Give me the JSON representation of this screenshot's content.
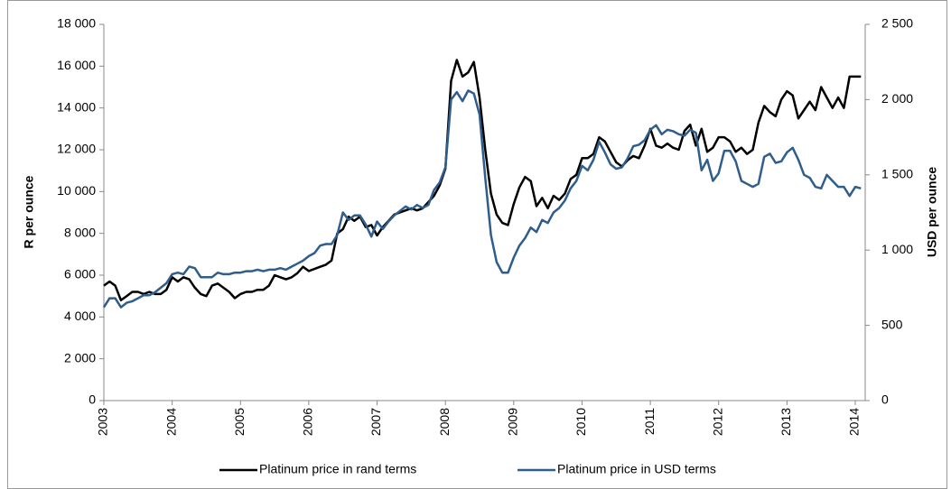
{
  "chart_data": {
    "type": "line",
    "y_label": "R per ounce",
    "y2_label": "USD per ounce",
    "categories": [
      "2003",
      null,
      null,
      null,
      null,
      null,
      null,
      null,
      null,
      null,
      null,
      null,
      "2004",
      null,
      null,
      null,
      null,
      null,
      null,
      null,
      null,
      null,
      null,
      null,
      "2005",
      null,
      null,
      null,
      null,
      null,
      null,
      null,
      null,
      null,
      null,
      null,
      "2006",
      null,
      null,
      null,
      null,
      null,
      null,
      null,
      null,
      null,
      null,
      null,
      "2007",
      null,
      null,
      null,
      null,
      null,
      null,
      null,
      null,
      null,
      null,
      null,
      "2008",
      null,
      null,
      null,
      null,
      null,
      null,
      null,
      null,
      null,
      null,
      null,
      "2009",
      null,
      null,
      null,
      null,
      null,
      null,
      null,
      null,
      null,
      null,
      null,
      "2010",
      null,
      null,
      null,
      null,
      null,
      null,
      null,
      null,
      null,
      null,
      null,
      "2011",
      null,
      null,
      null,
      null,
      null,
      null,
      null,
      null,
      null,
      null,
      null,
      "2012",
      null,
      null,
      null,
      null,
      null,
      null,
      null,
      null,
      null,
      null,
      null,
      "2013",
      null,
      null,
      null,
      null,
      null,
      null,
      null,
      null,
      null,
      null,
      null,
      "2014",
      null
    ],
    "series": [
      {
        "name": "Platinum price in rand terms",
        "color": "#000000",
        "values": [
          5500,
          5700,
          5500,
          4800,
          5000,
          5200,
          5200,
          5100,
          5200,
          5100,
          5100,
          5300,
          5900,
          5700,
          5900,
          5800,
          5400,
          5100,
          5000,
          5500,
          5600,
          5400,
          5200,
          4900,
          5100,
          5200,
          5200,
          5300,
          5300,
          5500,
          6000,
          5900,
          5800,
          5900,
          6100,
          6400,
          6200,
          6300,
          6400,
          6500,
          6700,
          8000,
          8200,
          8800,
          8600,
          8800,
          8300,
          8400,
          7900,
          8300,
          8600,
          8900,
          9000,
          9100,
          9200,
          9100,
          9200,
          9500,
          9800,
          10300,
          11100,
          15300,
          16300,
          15500,
          15700,
          16200,
          14500,
          12000,
          9900,
          8900,
          8500,
          8400,
          9400,
          10200,
          10700,
          10500,
          9300,
          9700,
          9200,
          9800,
          9600,
          9900,
          10600,
          10800,
          11600,
          11600,
          11800,
          12600,
          12400,
          11900,
          11400,
          11200,
          11500,
          11700,
          11600,
          12200,
          13000,
          12200,
          12100,
          12300,
          12100,
          12000,
          12900,
          13200,
          12200,
          13000,
          11900,
          12100,
          12600,
          12600,
          12400,
          11900,
          12100,
          11800,
          12000,
          13300,
          14100,
          13800,
          13600,
          14400,
          14800,
          14600,
          13500,
          13900,
          14300,
          13900,
          15000,
          14500,
          14000,
          14500,
          14000,
          15500,
          15500,
          15500
        ]
      },
      {
        "name": "Platinum price in USD terms",
        "color": "#2f5d8c",
        "axis": "y2",
        "values": [
          620,
          680,
          680,
          620,
          650,
          660,
          680,
          700,
          700,
          720,
          750,
          780,
          840,
          850,
          840,
          890,
          880,
          820,
          820,
          820,
          850,
          840,
          840,
          850,
          850,
          860,
          860,
          870,
          860,
          870,
          870,
          880,
          870,
          890,
          910,
          930,
          960,
          980,
          1030,
          1040,
          1040,
          1100,
          1250,
          1200,
          1230,
          1230,
          1170,
          1090,
          1190,
          1140,
          1190,
          1230,
          1260,
          1290,
          1270,
          1300,
          1280,
          1300,
          1400,
          1450,
          1550,
          2000,
          2050,
          1990,
          2060,
          2040,
          1900,
          1480,
          1100,
          920,
          850,
          850,
          950,
          1030,
          1080,
          1150,
          1120,
          1200,
          1180,
          1250,
          1280,
          1330,
          1410,
          1460,
          1560,
          1530,
          1600,
          1720,
          1650,
          1570,
          1540,
          1550,
          1610,
          1690,
          1700,
          1730,
          1800,
          1830,
          1770,
          1800,
          1790,
          1770,
          1760,
          1800,
          1780,
          1530,
          1600,
          1460,
          1510,
          1660,
          1660,
          1590,
          1460,
          1440,
          1420,
          1440,
          1620,
          1640,
          1580,
          1590,
          1650,
          1680,
          1600,
          1500,
          1480,
          1420,
          1410,
          1500,
          1460,
          1420,
          1420,
          1360,
          1420,
          1410
        ]
      }
    ],
    "ylim": [
      0,
      18000
    ],
    "yticks": [
      0,
      {
        "value": 2000,
        "label": "2 000"
      },
      {
        "value": 4000,
        "label": "4 000"
      },
      {
        "value": 6000,
        "label": "6 000"
      },
      {
        "value": 8000,
        "label": "8 000"
      },
      {
        "value": 10000,
        "label": "10 000"
      },
      {
        "value": 12000,
        "label": "12 000"
      },
      {
        "value": 14000,
        "label": "14 000"
      },
      {
        "value": 16000,
        "label": "16 000"
      },
      {
        "value": 18000,
        "label": "18 000"
      }
    ],
    "y2lim": [
      0,
      2500
    ],
    "y2ticks": [
      0,
      500,
      {
        "value": 1000,
        "label": "1 000"
      },
      {
        "value": 1500,
        "label": "1 500"
      },
      {
        "value": 2000,
        "label": "2 000"
      },
      {
        "value": 2500,
        "label": "2 500"
      }
    ],
    "legend": "bottom"
  }
}
